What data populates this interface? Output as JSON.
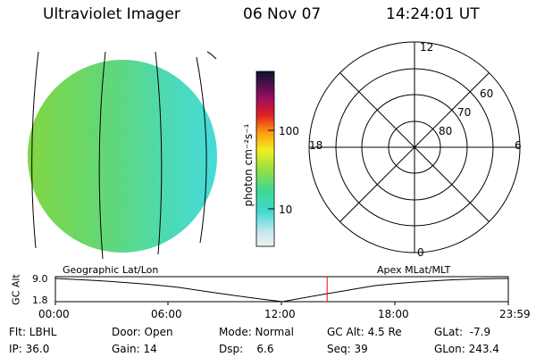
{
  "header": {
    "instrument": "Ultraviolet Imager",
    "date": "06 Nov 07",
    "time": "14:24:01 UT"
  },
  "colorbar": {
    "label": "photon cm⁻²s⁻¹",
    "ticks": [
      "100",
      "10"
    ]
  },
  "polar_plot": {
    "mlt_labels": {
      "top": "12",
      "left": "18",
      "right": "6",
      "bottom": "0"
    },
    "lat_labels": [
      "60",
      "70",
      "80"
    ]
  },
  "orbit": {
    "ylabel": "GC Alt",
    "ytick_top": "9.0",
    "ytick_bottom": "1.8",
    "left_caption": "Geographic Lat/Lon",
    "right_caption": "Apex MLat/MLT",
    "time_ticks": [
      "00:00",
      "06:00",
      "12:00",
      "18:00",
      "23:59"
    ],
    "current_time_fraction": 0.6
  },
  "status": {
    "flt": "Flt: LBHL",
    "ip": "IP: 36.0",
    "door": "Door: Open",
    "gain": "Gain: 14",
    "mode": "Mode: Normal",
    "dsp": "Dsp:    6.6",
    "gc_alt": "GC Alt: 4.5 Re",
    "seq": "Seq: 39",
    "glat": "GLat:  -7.9",
    "glon": "GLon: 243.4"
  },
  "colors": {
    "image_left": "#7fd63a",
    "image_mid": "#4fd684",
    "image_right": "#3fd8d8",
    "marker": "#ff0000"
  }
}
